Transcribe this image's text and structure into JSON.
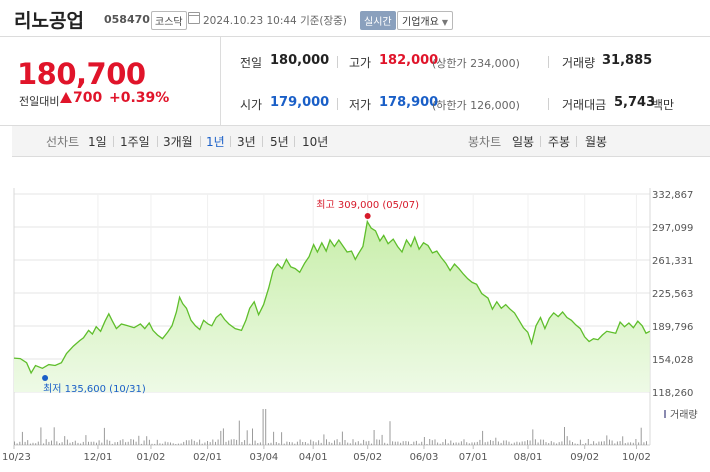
{
  "header": {
    "name": "리노공업",
    "code": "058470",
    "market": "코스닥",
    "datetime": "2024.10.23 10:44",
    "basis": "기준(장중)",
    "realtime": "실시간",
    "company_info": "기업개요"
  },
  "summary": {
    "price": "180,700",
    "change_label": "전일대비",
    "change": "700",
    "change_pct": "+0.39%",
    "prev_label": "전일",
    "prev": "180,000",
    "high_label": "고가",
    "high": "182,000",
    "upper_limit": "(상한가 234,000)",
    "volume_label": "거래량",
    "volume": "31,885",
    "open_label": "시가",
    "open": "179,000",
    "low_label": "저가",
    "low": "178,900",
    "lower_limit": "(하한가 126,000)",
    "value_label": "거래대금",
    "value": "5,743",
    "value_unit": "백만",
    "up_color": "#e0142a",
    "down_color": "#1a5fc7"
  },
  "periodbar": {
    "line_label": "선차트",
    "line_periods": [
      "1일",
      "1주일",
      "3개월",
      "1년",
      "3년",
      "5년",
      "10년"
    ],
    "active_period": "1년",
    "candle_label": "봉차트",
    "candle_periods": [
      "일봉",
      "주봉",
      "월봉"
    ]
  },
  "chart_data": {
    "type": "area",
    "yticks": [
      "332,867",
      "297,099",
      "261,331",
      "225,563",
      "189,796",
      "154,028",
      "118,260"
    ],
    "ylim": [
      118260,
      332867
    ],
    "xticks": [
      {
        "label": "10/23",
        "pos": 0.0
      },
      {
        "label": "12/01",
        "pos": 0.1328
      },
      {
        "label": "01/02",
        "pos": 0.2167
      },
      {
        "label": "02/01",
        "pos": 0.3063
      },
      {
        "label": "03/04",
        "pos": 0.3954
      },
      {
        "label": "04/01",
        "pos": 0.4734
      },
      {
        "label": "05/02",
        "pos": 0.5596
      },
      {
        "label": "06/03",
        "pos": 0.6487
      },
      {
        "label": "07/01",
        "pos": 0.7266
      },
      {
        "label": "08/01",
        "pos": 0.8133
      },
      {
        "label": "09/02",
        "pos": 0.903
      },
      {
        "label": "10/02",
        "pos": 0.9849
      }
    ],
    "series": [
      {
        "values": [
          [
            0.0,
            155000
          ],
          [
            0.01,
            154500
          ],
          [
            0.02,
            150000
          ],
          [
            0.027,
            139000
          ],
          [
            0.034,
            147000
          ],
          [
            0.045,
            144000
          ],
          [
            0.055,
            148000
          ],
          [
            0.065,
            147000
          ],
          [
            0.075,
            150000
          ],
          [
            0.083,
            160000
          ],
          [
            0.094,
            168000
          ],
          [
            0.104,
            174000
          ],
          [
            0.11,
            177000
          ],
          [
            0.118,
            185000
          ],
          [
            0.124,
            181000
          ],
          [
            0.13,
            189000
          ],
          [
            0.137,
            184000
          ],
          [
            0.144,
            195000
          ],
          [
            0.15,
            203000
          ],
          [
            0.155,
            196000
          ],
          [
            0.162,
            187000
          ],
          [
            0.17,
            192000
          ],
          [
            0.18,
            190000
          ],
          [
            0.19,
            188000
          ],
          [
            0.2,
            192000
          ],
          [
            0.207,
            187000
          ],
          [
            0.214,
            193000
          ],
          [
            0.22,
            185000
          ],
          [
            0.227,
            180000
          ],
          [
            0.235,
            176000
          ],
          [
            0.243,
            183000
          ],
          [
            0.25,
            190000
          ],
          [
            0.257,
            205000
          ],
          [
            0.262,
            221000
          ],
          [
            0.267,
            214000
          ],
          [
            0.273,
            209000
          ],
          [
            0.28,
            196000
          ],
          [
            0.287,
            190000
          ],
          [
            0.294,
            186000
          ],
          [
            0.3,
            196000
          ],
          [
            0.307,
            192000
          ],
          [
            0.313,
            190000
          ],
          [
            0.32,
            199000
          ],
          [
            0.327,
            203000
          ],
          [
            0.333,
            197000
          ],
          [
            0.34,
            192000
          ],
          [
            0.35,
            187000
          ],
          [
            0.36,
            185000
          ],
          [
            0.367,
            196000
          ],
          [
            0.373,
            209000
          ],
          [
            0.38,
            216000
          ],
          [
            0.387,
            202000
          ],
          [
            0.395,
            213000
          ],
          [
            0.403,
            231000
          ],
          [
            0.41,
            250000
          ],
          [
            0.417,
            257000
          ],
          [
            0.424,
            252000
          ],
          [
            0.431,
            262000
          ],
          [
            0.438,
            254000
          ],
          [
            0.445,
            252000
          ],
          [
            0.452,
            248000
          ],
          [
            0.46,
            258000
          ],
          [
            0.467,
            265000
          ],
          [
            0.474,
            278000
          ],
          [
            0.48,
            270000
          ],
          [
            0.487,
            280000
          ],
          [
            0.494,
            271000
          ],
          [
            0.5,
            283000
          ],
          [
            0.507,
            276000
          ],
          [
            0.514,
            283000
          ],
          [
            0.52,
            277000
          ],
          [
            0.527,
            270000
          ],
          [
            0.534,
            271000
          ],
          [
            0.54,
            262000
          ],
          [
            0.545,
            268000
          ],
          [
            0.552,
            276000
          ],
          [
            0.559,
            303000
          ],
          [
            0.565,
            296000
          ],
          [
            0.572,
            293000
          ],
          [
            0.579,
            282000
          ],
          [
            0.585,
            288000
          ],
          [
            0.592,
            279000
          ],
          [
            0.6,
            284000
          ],
          [
            0.607,
            276000
          ],
          [
            0.614,
            270000
          ],
          [
            0.621,
            283000
          ],
          [
            0.628,
            276000
          ],
          [
            0.634,
            286000
          ],
          [
            0.641,
            273000
          ],
          [
            0.648,
            280000
          ],
          [
            0.655,
            277000
          ],
          [
            0.662,
            269000
          ],
          [
            0.669,
            271000
          ],
          [
            0.676,
            264000
          ],
          [
            0.683,
            258000
          ],
          [
            0.69,
            250000
          ],
          [
            0.697,
            257000
          ],
          [
            0.704,
            252000
          ],
          [
            0.711,
            246000
          ],
          [
            0.718,
            241000
          ],
          [
            0.725,
            237000
          ],
          [
            0.732,
            235000
          ],
          [
            0.74,
            225000
          ],
          [
            0.75,
            220000
          ],
          [
            0.757,
            208000
          ],
          [
            0.764,
            216000
          ],
          [
            0.771,
            209000
          ],
          [
            0.778,
            213000
          ],
          [
            0.785,
            208000
          ],
          [
            0.792,
            204000
          ],
          [
            0.799,
            196000
          ],
          [
            0.806,
            188000
          ],
          [
            0.813,
            183000
          ],
          [
            0.819,
            171000
          ],
          [
            0.826,
            190000
          ],
          [
            0.833,
            199000
          ],
          [
            0.84,
            187000
          ],
          [
            0.847,
            198000
          ],
          [
            0.854,
            204000
          ],
          [
            0.861,
            200000
          ],
          [
            0.868,
            205000
          ],
          [
            0.875,
            199000
          ],
          [
            0.882,
            196000
          ],
          [
            0.889,
            191000
          ],
          [
            0.896,
            187000
          ],
          [
            0.903,
            178000
          ],
          [
            0.91,
            173000
          ],
          [
            0.917,
            176000
          ],
          [
            0.924,
            175000
          ],
          [
            0.931,
            180000
          ],
          [
            0.938,
            184000
          ],
          [
            0.945,
            183000
          ],
          [
            0.952,
            182000
          ],
          [
            0.959,
            194000
          ],
          [
            0.966,
            189000
          ],
          [
            0.973,
            193000
          ],
          [
            0.98,
            188000
          ],
          [
            0.987,
            195000
          ],
          [
            0.994,
            190000
          ],
          [
            1.0,
            182000
          ],
          [
            1.006,
            184000
          ]
        ]
      }
    ],
    "annotations": {
      "high": {
        "label": "최고 309,000 (05/07)",
        "x": 0.5596,
        "y": 309000
      },
      "low": {
        "label": "최저 135,600 (10/31)",
        "x": 0.027,
        "y": 135600
      }
    },
    "volume_legend": "거래량",
    "colors": {
      "line": "#5fbe2c",
      "fill_top": "#c8eeaa",
      "fill_bottom": "#eefae6",
      "volume": "#9b9b9b",
      "grid": "#e6e6e6"
    }
  }
}
